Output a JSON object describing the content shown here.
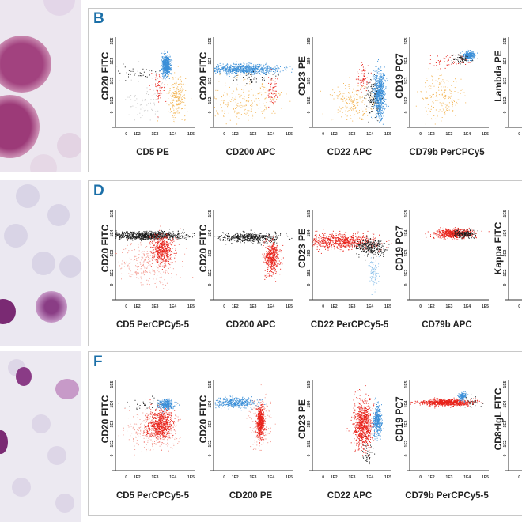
{
  "colors": {
    "b": "#3b8fd8",
    "r": "#e8241c",
    "k": "#1a1a1a",
    "o": "#f3b75a",
    "g": "#c9c9c9",
    "lr": "#f39a90",
    "lb": "#8cc0ea",
    "accent": "#1b6fa8"
  },
  "ticks": [
    "0",
    "1E2",
    "1E3",
    "1E4",
    "1E5"
  ],
  "panels": [
    {
      "label": "B",
      "plots": [
        {
          "x": "CD5 PE",
          "y": "CD20 FITC",
          "clusters": [
            [
              "g",
              2.5,
              2.0,
              0.8,
              0.6,
              80
            ],
            [
              "o",
              4.2,
              2.2,
              0.25,
              0.5,
              250
            ],
            [
              "r",
              3.2,
              2.6,
              0.22,
              0.35,
              60
            ],
            [
              "k",
              2.0,
              3.4,
              0.6,
              0.2,
              40
            ],
            [
              "b",
              3.6,
              3.8,
              0.12,
              0.25,
              600
            ]
          ]
        },
        {
          "x": "CD200 APC",
          "y": "CD20 FITC",
          "clusters": [
            [
              "o",
              2.5,
              2.0,
              1.0,
              0.6,
              250
            ],
            [
              "b",
              2.5,
              3.6,
              1.0,
              0.12,
              800
            ],
            [
              "k",
              3.0,
              3.2,
              0.6,
              0.15,
              40
            ],
            [
              "r",
              4.0,
              2.5,
              0.15,
              0.4,
              60
            ]
          ]
        },
        {
          "x": "CD22 APC",
          "y": "CD23 PE",
          "clusters": [
            [
              "o",
              3.0,
              1.9,
              0.6,
              0.5,
              200
            ],
            [
              "b",
              4.5,
              2.3,
              0.15,
              0.6,
              700
            ],
            [
              "k",
              4.1,
              2.2,
              0.2,
              0.5,
              100
            ],
            [
              "r",
              3.6,
              3.2,
              0.2,
              0.4,
              60
            ]
          ]
        },
        {
          "x": "CD79b PerCPCy5",
          "y": "CD19 PC7",
          "clusters": [
            [
              "o",
              2.5,
              2.2,
              0.6,
              0.6,
              200
            ],
            [
              "r",
              3.0,
              4.0,
              0.5,
              0.15,
              60
            ],
            [
              "b",
              4.1,
              4.3,
              0.15,
              0.1,
              300
            ],
            [
              "k",
              3.7,
              4.1,
              0.3,
              0.1,
              60
            ]
          ]
        },
        {
          "x": "",
          "y": "Lambda PE",
          "clusters": []
        }
      ]
    },
    {
      "label": "D",
      "plots": [
        {
          "x": "CD5 PerCPCy5-5",
          "y": "CD20 FITC",
          "clusters": [
            [
              "lr",
              2.6,
              2.5,
              0.8,
              0.6,
              300
            ],
            [
              "k",
              2.6,
              3.9,
              1.0,
              0.1,
              900
            ],
            [
              "r",
              3.4,
              3.2,
              0.3,
              0.35,
              500
            ]
          ]
        },
        {
          "x": "CD200 APC",
          "y": "CD20 FITC",
          "clusters": [
            [
              "k",
              2.8,
              3.8,
              0.8,
              0.12,
              500
            ],
            [
              "r",
              4.0,
              2.8,
              0.2,
              0.4,
              500
            ]
          ]
        },
        {
          "x": "CD22 PerCPCy5-5",
          "y": "CD23 PE",
          "clusters": [
            [
              "r",
              2.4,
              3.6,
              1.0,
              0.2,
              700
            ],
            [
              "k",
              4.0,
              3.3,
              0.4,
              0.2,
              300
            ],
            [
              "lb",
              4.2,
              2.0,
              0.15,
              0.5,
              80
            ]
          ]
        },
        {
          "x": "CD79b APC",
          "y": "CD19 PC7",
          "clusters": [
            [
              "r",
              3.2,
              4.0,
              0.5,
              0.12,
              600
            ],
            [
              "k",
              3.8,
              4.0,
              0.3,
              0.1,
              200
            ]
          ]
        },
        {
          "x": "",
          "y": "Kappa FITC",
          "clusters": []
        }
      ]
    },
    {
      "label": "F",
      "plots": [
        {
          "x": "CD5 PerCPCy5-5",
          "y": "CD20 FITC",
          "clusters": [
            [
              "lr",
              2.8,
              2.7,
              0.7,
              0.5,
              300
            ],
            [
              "r",
              3.3,
              3.0,
              0.35,
              0.4,
              700
            ],
            [
              "k",
              2.5,
              4.0,
              0.7,
              0.2,
              40
            ],
            [
              "b",
              3.6,
              4.0,
              0.2,
              0.12,
              300
            ]
          ]
        },
        {
          "x": "CD200 PE",
          "y": "CD20 FITC",
          "clusters": [
            [
              "b",
              2.0,
              4.1,
              0.6,
              0.12,
              400
            ],
            [
              "lr",
              3.4,
              3.1,
              0.3,
              0.6,
              200
            ],
            [
              "r",
              3.4,
              3.1,
              0.1,
              0.4,
              500
            ]
          ]
        },
        {
          "x": "CD22 APC",
          "y": "CD23 PE",
          "clusters": [
            [
              "r",
              3.6,
              3.0,
              0.25,
              0.6,
              800
            ],
            [
              "b",
              4.4,
              3.2,
              0.12,
              0.4,
              400
            ],
            [
              "k",
              3.8,
              1.5,
              0.15,
              0.3,
              40
            ]
          ]
        },
        {
          "x": "CD79b PerCPCy5-5",
          "y": "CD19 PC7",
          "clusters": [
            [
              "r",
              2.8,
              4.1,
              0.7,
              0.08,
              800
            ],
            [
              "b",
              3.7,
              4.4,
              0.12,
              0.1,
              150
            ],
            [
              "k",
              4.2,
              4.1,
              0.3,
              0.15,
              30
            ]
          ]
        },
        {
          "x": "",
          "y": "CD8+IgL FITC",
          "clusters": []
        }
      ]
    }
  ]
}
